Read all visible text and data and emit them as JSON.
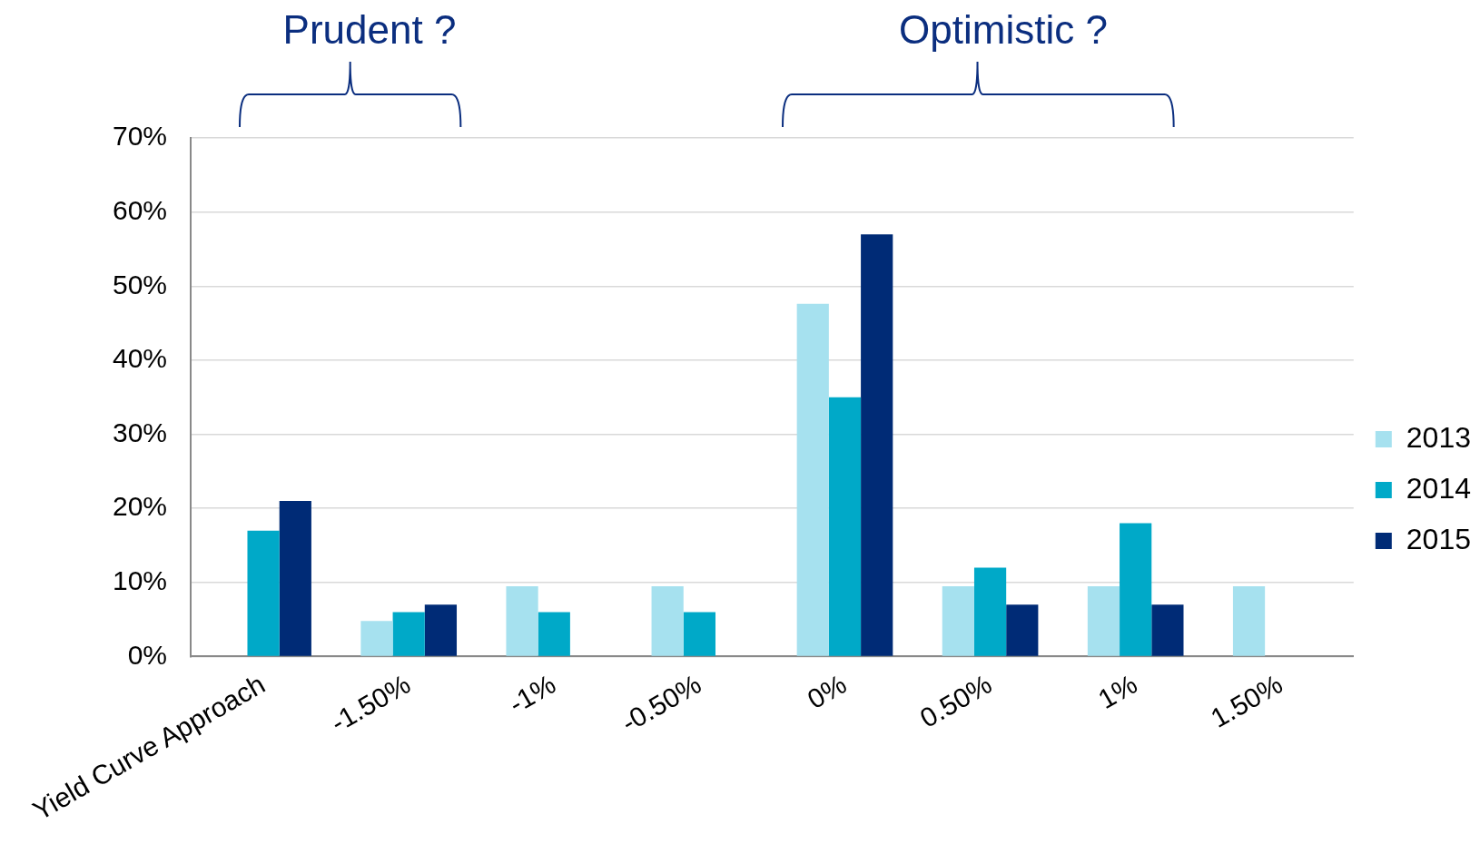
{
  "chart_data": {
    "type": "bar",
    "categories": [
      "Yield Curve Approach",
      "-1.50%",
      "-1%",
      "-0.50%",
      "0%",
      "0.50%",
      "1%",
      "1.50%"
    ],
    "series": [
      {
        "name": "2013",
        "color": "#a6e1ef",
        "values": [
          null,
          4.8,
          9.5,
          9.5,
          47.6,
          9.5,
          9.5,
          9.5
        ]
      },
      {
        "name": "2014",
        "color": "#00a9c8",
        "values": [
          17,
          6,
          6,
          6,
          35,
          12,
          18,
          null
        ]
      },
      {
        "name": "2015",
        "color": "#002b76",
        "values": [
          21,
          7,
          null,
          null,
          57,
          7,
          7,
          null
        ]
      }
    ],
    "ylim": [
      0,
      70
    ],
    "yticks": [
      {
        "value": 0,
        "label": "0%"
      },
      {
        "value": 10,
        "label": "10%"
      },
      {
        "value": 20,
        "label": "20%"
      },
      {
        "value": 30,
        "label": "30%"
      },
      {
        "value": 40,
        "label": "40%"
      },
      {
        "value": 50,
        "label": "50%"
      },
      {
        "value": 60,
        "label": "60%"
      },
      {
        "value": 70,
        "label": "70%"
      }
    ],
    "grid": "y",
    "legend": "right",
    "annotations": [
      "Prudent ?",
      "Optimistic ?"
    ]
  }
}
